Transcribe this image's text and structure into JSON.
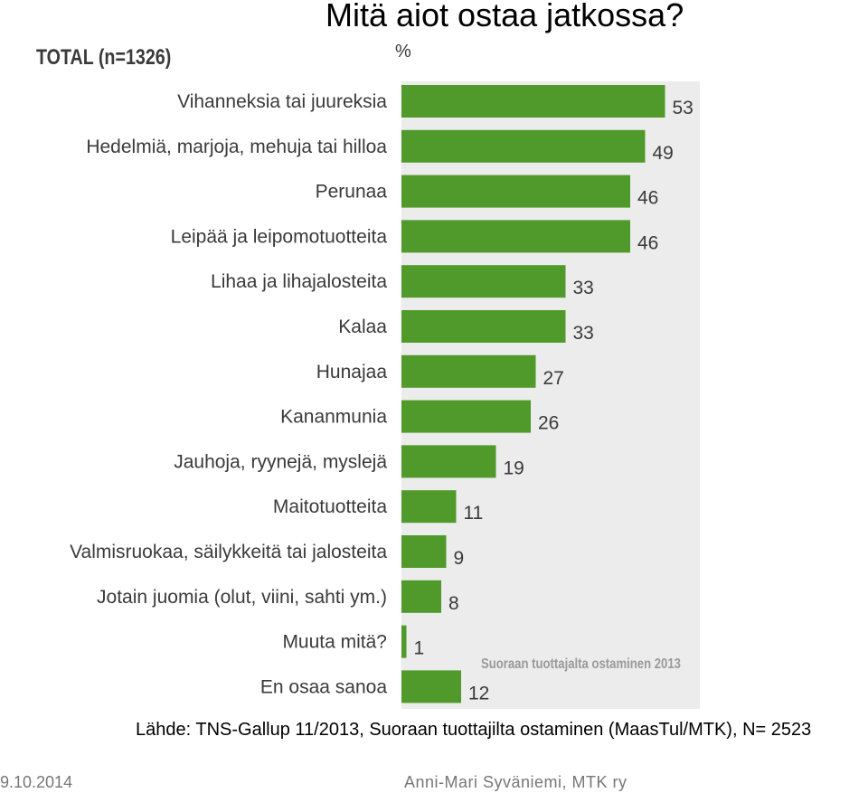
{
  "slide": {
    "title": "Mitä aiot ostaa jatkossa?",
    "source": "Lähde: TNS-Gallup 11/2013, Suoraan tuottajilta ostaminen (MaasTul/MTK), N= 2523",
    "date": "9.10.2014",
    "author": "Anni-Mari Syväniemi, MTK ry"
  },
  "chart_data": {
    "type": "bar",
    "orientation": "horizontal",
    "title": "TOTAL (n=1326)",
    "unit_label": "%",
    "watermark": "Suoraan tuottajalta ostaminen 2013",
    "bar_color": "#4f9a2a",
    "categories": [
      "Vihanneksia tai juureksia",
      "Hedelmiä, marjoja, mehuja tai hilloa",
      "Perunaa",
      "Leipää ja leipomotuotteita",
      "Lihaa ja lihajalosteita",
      "Kalaa",
      "Hunajaa",
      "Kananmunia",
      "Jauhoja, ryynejä, myslejä",
      "Maitotuotteita",
      "Valmisruokaa, säilykkeitä tai jalosteita",
      "Jotain juomia (olut, viini, sahti ym.)",
      "Muuta mitä?",
      "En osaa sanoa"
    ],
    "values": [
      53,
      49,
      46,
      46,
      33,
      33,
      27,
      26,
      19,
      11,
      9,
      8,
      1,
      12
    ],
    "xlim": [
      0,
      60
    ]
  }
}
